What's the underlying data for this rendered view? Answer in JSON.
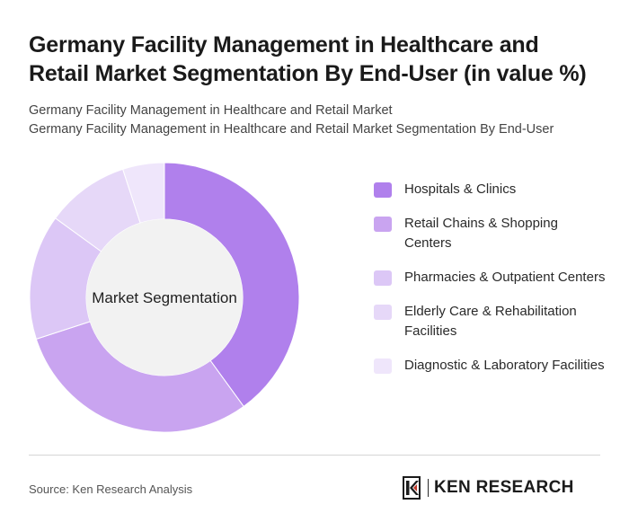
{
  "header": {
    "title": "Germany Facility Management in Healthcare and Retail Market Segmentation By End-User (in value %)",
    "subtitle_line1": "Germany Facility Management in Healthcare and Retail Market",
    "subtitle_line2": "Germany Facility Management in Healthcare and Retail Market Segmentation By End-User"
  },
  "chart_data": {
    "type": "pie",
    "center_label": "Market Segmentation",
    "legend_position": "right",
    "categories": [
      "Hospitals & Clinics",
      "Retail Chains & Shopping Centers",
      "Pharmacies & Outpatient Centers",
      "Elderly Care & Rehabilitation Facilities",
      "Diagnostic & Laboratory Facilities"
    ],
    "values": [
      40,
      30,
      15,
      10,
      5
    ],
    "colors": [
      "#b080ec",
      "#c9a4f0",
      "#dcc7f6",
      "#e6d8f8",
      "#efe6fb"
    ]
  },
  "footer": {
    "source": "Source: Ken Research Analysis",
    "logo_text": "KEN RESEARCH"
  }
}
